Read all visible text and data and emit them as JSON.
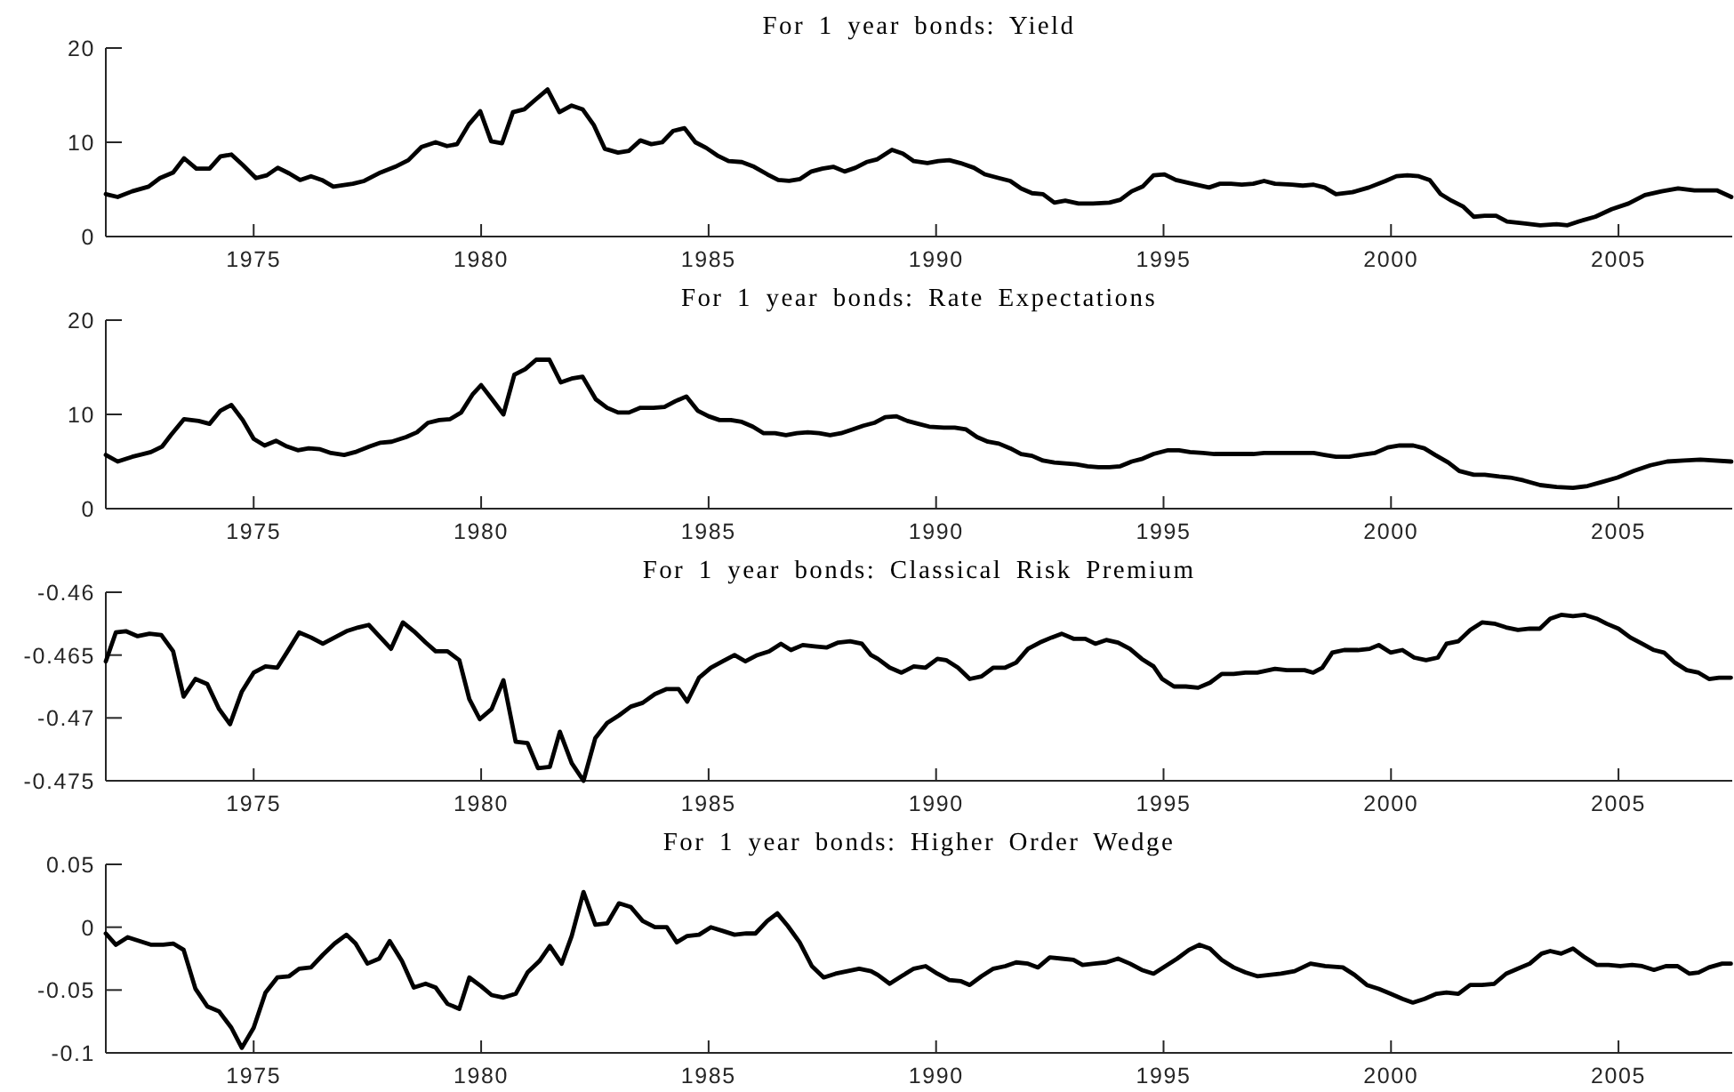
{
  "chart_data": [
    {
      "type": "line",
      "title": "For 1 year bonds: Yield",
      "color": "#000000",
      "xlim": [
        1971.75,
        2007.5
      ],
      "xticks": [
        1975,
        1980,
        1985,
        1990,
        1995,
        2000,
        2005
      ],
      "ylim": [
        0,
        20
      ],
      "yticks": [
        0,
        10,
        20
      ],
      "x": [
        1971.75,
        1972.01,
        1972.33,
        1972.69,
        1972.94,
        1973.23,
        1973.47,
        1973.74,
        1974.03,
        1974.27,
        1974.51,
        1974.76,
        1975.05,
        1975.29,
        1975.53,
        1975.78,
        1976.02,
        1976.26,
        1976.5,
        1976.75,
        1977.18,
        1977.43,
        1977.79,
        1978.11,
        1978.4,
        1978.69,
        1979.0,
        1979.25,
        1979.47,
        1979.73,
        1979.98,
        1980.22,
        1980.46,
        1980.7,
        1980.95,
        1981.19,
        1981.46,
        1981.72,
        1981.99,
        1982.23,
        1982.48,
        1982.72,
        1983.01,
        1983.25,
        1983.5,
        1983.74,
        1983.98,
        1984.22,
        1984.47,
        1984.71,
        1984.95,
        1985.19,
        1985.44,
        1985.73,
        1986.0,
        1986.29,
        1986.53,
        1986.77,
        1987.01,
        1987.26,
        1987.5,
        1987.74,
        1987.99,
        1988.23,
        1988.47,
        1988.71,
        1989.03,
        1989.27,
        1989.51,
        1989.81,
        1990.05,
        1990.29,
        1990.53,
        1990.83,
        1991.07,
        1991.38,
        1991.63,
        1991.87,
        1992.11,
        1992.35,
        1992.6,
        1992.84,
        1993.13,
        1993.45,
        1993.81,
        1994.05,
        1994.3,
        1994.54,
        1994.78,
        1995.02,
        1995.27,
        1995.63,
        1996.0,
        1996.24,
        1996.48,
        1996.72,
        1996.97,
        1997.21,
        1997.45,
        1997.82,
        1998.06,
        1998.3,
        1998.54,
        1998.79,
        1999.15,
        1999.51,
        1999.88,
        2000.12,
        2000.36,
        2000.61,
        2000.85,
        2001.09,
        2001.33,
        2001.58,
        2001.82,
        2002.06,
        2002.31,
        2002.55,
        2002.91,
        2003.28,
        2003.64,
        2003.88,
        2004.13,
        2004.49,
        2004.85,
        2005.22,
        2005.58,
        2005.95,
        2006.31,
        2006.67,
        2007.16,
        2007.48
      ],
      "values": [
        4.5,
        4.2,
        4.8,
        5.3,
        6.2,
        6.8,
        8.3,
        7.2,
        7.2,
        8.5,
        8.7,
        7.6,
        6.2,
        6.5,
        7.3,
        6.7,
        6.0,
        6.4,
        6.0,
        5.3,
        5.6,
        5.9,
        6.8,
        7.4,
        8.1,
        9.5,
        10.0,
        9.6,
        9.8,
        11.9,
        13.3,
        10.1,
        9.9,
        13.2,
        13.5,
        14.5,
        15.6,
        13.2,
        13.9,
        13.5,
        11.8,
        9.3,
        8.9,
        9.1,
        10.2,
        9.8,
        10.0,
        11.2,
        11.5,
        10.0,
        9.4,
        8.6,
        8.0,
        7.9,
        7.4,
        6.6,
        6.0,
        5.9,
        6.1,
        6.9,
        7.2,
        7.4,
        6.9,
        7.3,
        7.9,
        8.2,
        9.2,
        8.8,
        8.0,
        7.8,
        8.0,
        8.1,
        7.8,
        7.3,
        6.6,
        6.2,
        5.9,
        5.1,
        4.6,
        4.5,
        3.6,
        3.8,
        3.5,
        3.5,
        3.6,
        3.9,
        4.8,
        5.3,
        6.5,
        6.6,
        6.0,
        5.6,
        5.2,
        5.6,
        5.6,
        5.5,
        5.6,
        5.9,
        5.6,
        5.5,
        5.4,
        5.5,
        5.2,
        4.5,
        4.7,
        5.2,
        5.9,
        6.4,
        6.5,
        6.4,
        6.0,
        4.5,
        3.8,
        3.2,
        2.1,
        2.2,
        2.2,
        1.6,
        1.4,
        1.2,
        1.3,
        1.2,
        1.6,
        2.1,
        2.9,
        3.5,
        4.4,
        4.8,
        5.1,
        4.9,
        4.9,
        4.2
      ]
    },
    {
      "type": "line",
      "title": "For 1 year bonds: Rate Expectations",
      "color": "#000000",
      "xlim": [
        1971.75,
        2007.5
      ],
      "xticks": [
        1975,
        1980,
        1985,
        1990,
        1995,
        2000,
        2005
      ],
      "ylim": [
        0,
        20
      ],
      "yticks": [
        0,
        10,
        20
      ],
      "x": [
        1971.75,
        1972.01,
        1972.33,
        1972.74,
        1972.99,
        1973.18,
        1973.47,
        1973.79,
        1974.03,
        1974.27,
        1974.51,
        1974.76,
        1975.0,
        1975.24,
        1975.49,
        1975.73,
        1975.97,
        1976.21,
        1976.46,
        1976.7,
        1976.99,
        1977.23,
        1977.55,
        1977.79,
        1978.03,
        1978.35,
        1978.59,
        1978.83,
        1979.08,
        1979.32,
        1979.56,
        1979.81,
        1980.0,
        1980.24,
        1980.49,
        1980.73,
        1980.97,
        1981.21,
        1981.5,
        1981.75,
        1981.99,
        1982.23,
        1982.52,
        1982.77,
        1983.01,
        1983.25,
        1983.5,
        1983.79,
        1984.03,
        1984.27,
        1984.51,
        1984.76,
        1985.0,
        1985.24,
        1985.49,
        1985.73,
        1985.97,
        1986.21,
        1986.46,
        1986.7,
        1986.94,
        1987.18,
        1987.43,
        1987.67,
        1987.91,
        1988.16,
        1988.4,
        1988.64,
        1988.88,
        1989.13,
        1989.37,
        1989.61,
        1989.85,
        1990.17,
        1990.41,
        1990.66,
        1990.9,
        1991.14,
        1991.38,
        1991.63,
        1991.87,
        1992.11,
        1992.35,
        1992.6,
        1992.84,
        1993.08,
        1993.33,
        1993.57,
        1993.81,
        1994.05,
        1994.3,
        1994.54,
        1994.78,
        1995.1,
        1995.34,
        1995.58,
        1995.87,
        1996.12,
        1996.41,
        1996.72,
        1996.97,
        1997.21,
        1997.57,
        1997.94,
        1998.3,
        1998.54,
        1998.79,
        1999.08,
        1999.32,
        1999.64,
        1999.93,
        2000.19,
        2000.49,
        2000.73,
        2000.97,
        2001.26,
        2001.5,
        2001.82,
        2002.06,
        2002.38,
        2002.62,
        2002.91,
        2003.28,
        2003.64,
        2004.0,
        2004.32,
        2004.61,
        2004.98,
        2005.34,
        2005.7,
        2006.07,
        2006.43,
        2006.8,
        2007.48
      ],
      "values": [
        5.7,
        5.0,
        5.5,
        6.0,
        6.6,
        7.8,
        9.5,
        9.3,
        9.0,
        10.4,
        11.0,
        9.4,
        7.4,
        6.7,
        7.2,
        6.6,
        6.2,
        6.4,
        6.3,
        5.9,
        5.7,
        6.0,
        6.6,
        7.0,
        7.1,
        7.6,
        8.1,
        9.1,
        9.4,
        9.5,
        10.2,
        12.1,
        13.1,
        11.6,
        10.0,
        14.2,
        14.8,
        15.8,
        15.8,
        13.4,
        13.8,
        14.0,
        11.6,
        10.7,
        10.2,
        10.2,
        10.7,
        10.7,
        10.8,
        11.4,
        11.9,
        10.4,
        9.8,
        9.4,
        9.4,
        9.2,
        8.7,
        8.0,
        8.0,
        7.8,
        8.0,
        8.1,
        8.0,
        7.8,
        8.0,
        8.4,
        8.8,
        9.1,
        9.7,
        9.8,
        9.3,
        9.0,
        8.7,
        8.6,
        8.6,
        8.4,
        7.6,
        7.1,
        6.9,
        6.4,
        5.8,
        5.6,
        5.1,
        4.9,
        4.8,
        4.7,
        4.5,
        4.4,
        4.4,
        4.5,
        5.0,
        5.3,
        5.8,
        6.2,
        6.2,
        6.0,
        5.9,
        5.8,
        5.8,
        5.8,
        5.8,
        5.9,
        5.9,
        5.9,
        5.9,
        5.7,
        5.5,
        5.5,
        5.7,
        5.9,
        6.5,
        6.7,
        6.7,
        6.4,
        5.7,
        4.9,
        4.0,
        3.6,
        3.6,
        3.4,
        3.3,
        3.0,
        2.5,
        2.3,
        2.2,
        2.4,
        2.8,
        3.3,
        4.0,
        4.6,
        5.0,
        5.1,
        5.2,
        5.0
      ]
    },
    {
      "type": "line",
      "title": "For 1 year bonds: Classical Risk Premium",
      "color": "#000000",
      "xlim": [
        1971.75,
        2007.5
      ],
      "xticks": [
        1975,
        1980,
        1985,
        1990,
        1995,
        2000,
        2005
      ],
      "ylim": [
        -0.475,
        -0.46
      ],
      "yticks": [
        -0.475,
        -0.47,
        -0.465,
        -0.46
      ],
      "x": [
        1971.75,
        1971.97,
        1972.19,
        1972.45,
        1972.71,
        1972.97,
        1973.23,
        1973.46,
        1973.72,
        1973.98,
        1974.24,
        1974.48,
        1974.74,
        1975.0,
        1975.26,
        1975.52,
        1975.78,
        1976.0,
        1976.26,
        1976.52,
        1976.78,
        1977.04,
        1977.3,
        1977.53,
        1977.76,
        1978.02,
        1978.28,
        1978.52,
        1978.78,
        1979.0,
        1979.26,
        1979.52,
        1979.74,
        1979.97,
        1980.23,
        1980.49,
        1980.76,
        1981.02,
        1981.25,
        1981.51,
        1981.73,
        1981.99,
        1982.25,
        1982.51,
        1982.77,
        1983.03,
        1983.29,
        1983.55,
        1983.82,
        1984.08,
        1984.34,
        1984.53,
        1984.79,
        1985.05,
        1985.31,
        1985.57,
        1985.81,
        1986.07,
        1986.33,
        1986.59,
        1986.81,
        1987.07,
        1987.33,
        1987.59,
        1987.85,
        1988.11,
        1988.37,
        1988.57,
        1988.72,
        1988.98,
        1989.24,
        1989.51,
        1989.77,
        1990.03,
        1990.22,
        1990.48,
        1990.74,
        1991.0,
        1991.26,
        1991.52,
        1991.76,
        1992.02,
        1992.28,
        1992.54,
        1992.76,
        1993.02,
        1993.28,
        1993.5,
        1993.74,
        1994.0,
        1994.26,
        1994.52,
        1994.78,
        1994.97,
        1995.23,
        1995.49,
        1995.76,
        1996.02,
        1996.28,
        1996.54,
        1996.8,
        1997.06,
        1997.45,
        1997.71,
        1998.1,
        1998.29,
        1998.49,
        1998.71,
        1998.97,
        1999.27,
        1999.53,
        1999.73,
        1999.99,
        2000.25,
        2000.51,
        2000.77,
        2001.03,
        2001.22,
        2001.48,
        2001.74,
        2002.0,
        2002.27,
        2002.53,
        2002.79,
        2003.05,
        2003.27,
        2003.5,
        2003.74,
        2004.0,
        2004.26,
        2004.52,
        2004.74,
        2005.0,
        2005.26,
        2005.52,
        2005.78,
        2006.0,
        2006.24,
        2006.5,
        2006.76,
        2006.99,
        2007.21,
        2007.47
      ],
      "values": [
        -0.4655,
        -0.4632,
        -0.4631,
        -0.4635,
        -0.4633,
        -0.4634,
        -0.4647,
        -0.4683,
        -0.4669,
        -0.4673,
        -0.4693,
        -0.4705,
        -0.4679,
        -0.4664,
        -0.4659,
        -0.466,
        -0.4645,
        -0.4632,
        -0.4636,
        -0.4641,
        -0.4636,
        -0.4631,
        -0.4628,
        -0.4626,
        -0.4635,
        -0.4645,
        -0.4624,
        -0.4631,
        -0.464,
        -0.4647,
        -0.4647,
        -0.4654,
        -0.4685,
        -0.4701,
        -0.4693,
        -0.467,
        -0.4719,
        -0.472,
        -0.474,
        -0.4739,
        -0.4711,
        -0.4736,
        -0.475,
        -0.4716,
        -0.4704,
        -0.4698,
        -0.4691,
        -0.4688,
        -0.4681,
        -0.4677,
        -0.4677,
        -0.4687,
        -0.4668,
        -0.466,
        -0.4655,
        -0.465,
        -0.4655,
        -0.465,
        -0.4647,
        -0.4641,
        -0.4646,
        -0.4642,
        -0.4643,
        -0.4644,
        -0.464,
        -0.4639,
        -0.4641,
        -0.465,
        -0.4653,
        -0.466,
        -0.4664,
        -0.4659,
        -0.466,
        -0.4653,
        -0.4654,
        -0.466,
        -0.4669,
        -0.4667,
        -0.466,
        -0.466,
        -0.4656,
        -0.4645,
        -0.464,
        -0.4636,
        -0.4633,
        -0.4637,
        -0.4637,
        -0.4641,
        -0.4638,
        -0.464,
        -0.4645,
        -0.4653,
        -0.4659,
        -0.4669,
        -0.4675,
        -0.4675,
        -0.4676,
        -0.4672,
        -0.4665,
        -0.4665,
        -0.4664,
        -0.4664,
        -0.4661,
        -0.4662,
        -0.4662,
        -0.4664,
        -0.466,
        -0.4648,
        -0.4646,
        -0.4646,
        -0.4645,
        -0.4642,
        -0.4648,
        -0.4646,
        -0.4652,
        -0.4654,
        -0.4652,
        -0.4641,
        -0.4639,
        -0.463,
        -0.4624,
        -0.4625,
        -0.4628,
        -0.463,
        -0.4629,
        -0.4629,
        -0.4621,
        -0.4618,
        -0.4619,
        -0.4618,
        -0.4621,
        -0.4625,
        -0.4629,
        -0.4636,
        -0.4641,
        -0.4646,
        -0.4648,
        -0.4656,
        -0.4662,
        -0.4664,
        -0.4669,
        -0.4668,
        -0.4668
      ]
    },
    {
      "type": "line",
      "title": "For 1 year bonds: Higher Order Wedge",
      "color": "#000000",
      "xlim": [
        1971.75,
        2007.5
      ],
      "xticks": [
        1975,
        1980,
        1985,
        1990,
        1995,
        2000,
        2005
      ],
      "ylim": [
        -0.1,
        0.05
      ],
      "yticks": [
        -0.1,
        -0.05,
        0,
        0.05
      ],
      "x": [
        1971.75,
        1971.97,
        1972.23,
        1972.49,
        1972.75,
        1973.01,
        1973.23,
        1973.46,
        1973.72,
        1973.98,
        1974.24,
        1974.51,
        1974.74,
        1975.0,
        1975.26,
        1975.52,
        1975.78,
        1976.0,
        1976.26,
        1976.52,
        1976.78,
        1977.04,
        1977.24,
        1977.5,
        1977.76,
        1977.99,
        1978.26,
        1978.52,
        1978.78,
        1979.0,
        1979.26,
        1979.52,
        1979.74,
        1980.0,
        1980.23,
        1980.49,
        1980.76,
        1981.02,
        1981.28,
        1981.51,
        1981.77,
        1981.99,
        1982.25,
        1982.51,
        1982.77,
        1983.03,
        1983.29,
        1983.55,
        1983.82,
        1984.08,
        1984.3,
        1984.53,
        1984.79,
        1985.05,
        1985.31,
        1985.57,
        1985.83,
        1986.03,
        1986.29,
        1986.51,
        1986.74,
        1987.0,
        1987.27,
        1987.53,
        1987.79,
        1988.05,
        1988.31,
        1988.57,
        1988.72,
        1988.98,
        1989.24,
        1989.51,
        1989.77,
        1990.03,
        1990.29,
        1990.55,
        1990.74,
        1991.0,
        1991.26,
        1991.52,
        1991.76,
        1992.02,
        1992.24,
        1992.5,
        1992.76,
        1993.02,
        1993.22,
        1993.48,
        1993.74,
        1994.0,
        1994.26,
        1994.52,
        1994.78,
        1995.04,
        1995.3,
        1995.56,
        1995.79,
        1996.02,
        1996.28,
        1996.54,
        1996.8,
        1997.06,
        1997.32,
        1997.58,
        1997.88,
        1998.23,
        1998.55,
        1998.94,
        1999.2,
        1999.47,
        1999.73,
        1999.99,
        2000.25,
        2000.48,
        2000.74,
        2001.0,
        2001.22,
        2001.48,
        2001.74,
        2002.0,
        2002.27,
        2002.53,
        2002.79,
        2003.05,
        2003.31,
        2003.5,
        2003.74,
        2004.0,
        2004.26,
        2004.52,
        2004.78,
        2005.04,
        2005.3,
        2005.52,
        2005.78,
        2006.04,
        2006.3,
        2006.56,
        2006.76,
        2006.99,
        2007.28,
        2007.47
      ],
      "values": [
        -0.005,
        -0.014,
        -0.008,
        -0.011,
        -0.014,
        -0.014,
        -0.013,
        -0.018,
        -0.049,
        -0.063,
        -0.067,
        -0.08,
        -0.096,
        -0.08,
        -0.052,
        -0.04,
        -0.039,
        -0.033,
        -0.032,
        -0.022,
        -0.013,
        -0.006,
        -0.013,
        -0.029,
        -0.025,
        -0.011,
        -0.027,
        -0.048,
        -0.045,
        -0.048,
        -0.061,
        -0.065,
        -0.04,
        -0.047,
        -0.054,
        -0.056,
        -0.053,
        -0.036,
        -0.027,
        -0.015,
        -0.029,
        -0.007,
        0.028,
        0.002,
        0.003,
        0.019,
        0.016,
        0.005,
        0,
        0,
        -0.012,
        -0.007,
        -0.006,
        0,
        -0.003,
        -0.006,
        -0.005,
        -0.005,
        0.005,
        0.011,
        0.001,
        -0.012,
        -0.031,
        -0.04,
        -0.037,
        -0.035,
        -0.033,
        -0.035,
        -0.038,
        -0.045,
        -0.039,
        -0.033,
        -0.031,
        -0.037,
        -0.042,
        -0.043,
        -0.046,
        -0.039,
        -0.033,
        -0.031,
        -0.028,
        -0.029,
        -0.032,
        -0.024,
        -0.025,
        -0.026,
        -0.03,
        -0.029,
        -0.028,
        -0.025,
        -0.029,
        -0.034,
        -0.037,
        -0.031,
        -0.025,
        -0.018,
        -0.014,
        -0.017,
        -0.026,
        -0.032,
        -0.036,
        -0.039,
        -0.038,
        -0.037,
        -0.035,
        -0.029,
        -0.031,
        -0.032,
        -0.038,
        -0.046,
        -0.049,
        -0.053,
        -0.057,
        -0.06,
        -0.057,
        -0.053,
        -0.052,
        -0.053,
        -0.046,
        -0.046,
        -0.045,
        -0.037,
        -0.033,
        -0.029,
        -0.021,
        -0.019,
        -0.021,
        -0.017,
        -0.024,
        -0.03,
        -0.03,
        -0.031,
        -0.03,
        -0.031,
        -0.034,
        -0.031,
        -0.031,
        -0.037,
        -0.036,
        -0.032,
        -0.029,
        -0.029
      ]
    }
  ]
}
